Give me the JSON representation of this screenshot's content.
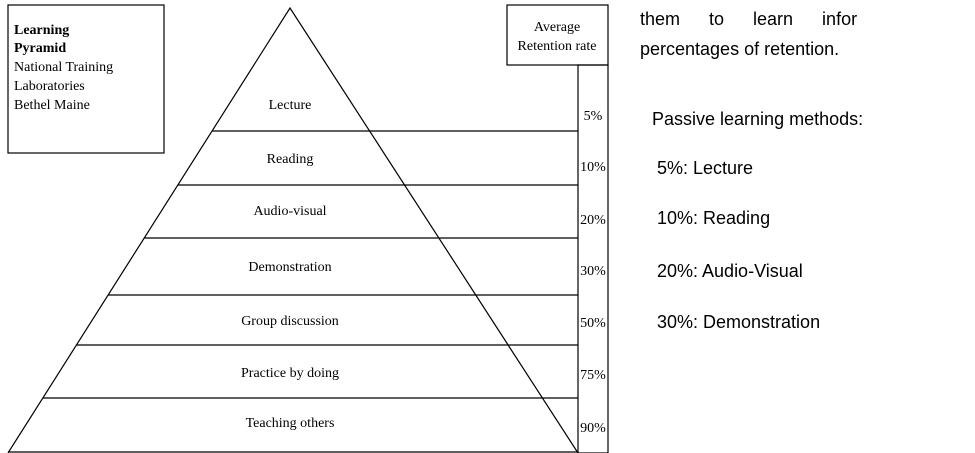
{
  "legend": {
    "title": [
      "Learning",
      "Pyramid"
    ],
    "lines": [
      "National Training",
      "Laboratories",
      "Bethel Maine"
    ]
  },
  "rate_header": [
    "Average",
    "Retention rate"
  ],
  "levels": [
    {
      "label": "Lecture",
      "rate": "5%"
    },
    {
      "label": "Reading",
      "rate": "10%"
    },
    {
      "label": "Audio-visual",
      "rate": "20%"
    },
    {
      "label": "Demonstration",
      "rate": "30%"
    },
    {
      "label": "Group discussion",
      "rate": "50%"
    },
    {
      "label": "Practice by doing",
      "rate": "75%"
    },
    {
      "label": "Teaching others",
      "rate": "90%"
    }
  ],
  "text": {
    "lines": [
      "them to learn infor",
      "percentages of retention."
    ],
    "heading": "Passive learning methods:",
    "items": [
      "5%: Lecture",
      "10%: Reading",
      "20%: Audio-Visual",
      "30%: Demonstration"
    ]
  }
}
